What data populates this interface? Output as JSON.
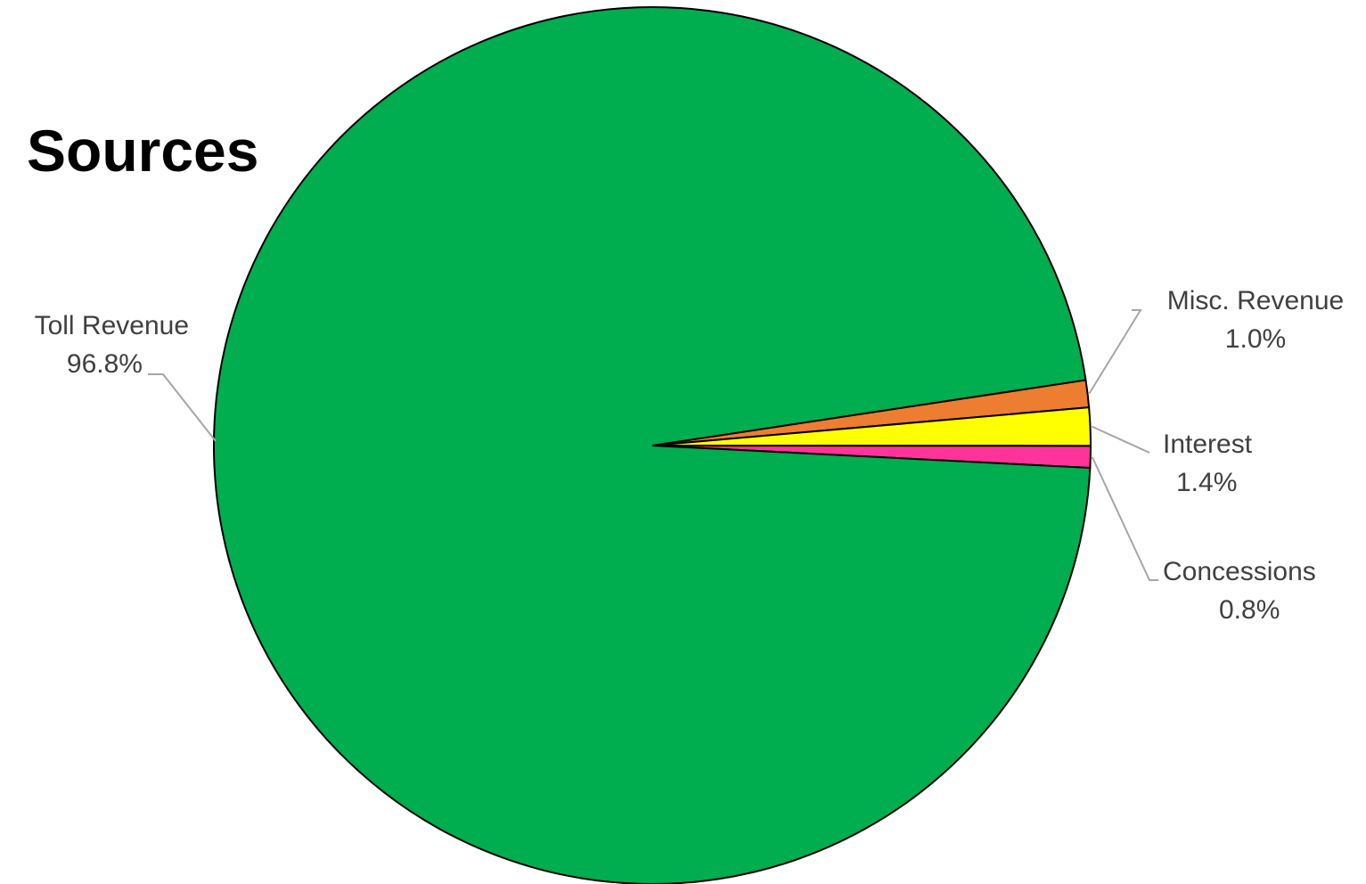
{
  "chart_data": {
    "type": "pie",
    "title": "Sources",
    "slices": [
      {
        "label": "Toll Revenue",
        "percent_label": "96.8%",
        "value": 96.8,
        "color": "#00ad4f"
      },
      {
        "label": "Misc. Revenue",
        "percent_label": "1.0%",
        "value": 1.0,
        "color": "#ed7d31"
      },
      {
        "label": "Interest",
        "percent_label": "1.4%",
        "value": 1.4,
        "color": "#ffff00"
      },
      {
        "label": "Concessions",
        "percent_label": "0.8%",
        "value": 0.8,
        "color": "#ff3399"
      }
    ],
    "legend": "none",
    "data_labels": "outside with leader lines"
  }
}
